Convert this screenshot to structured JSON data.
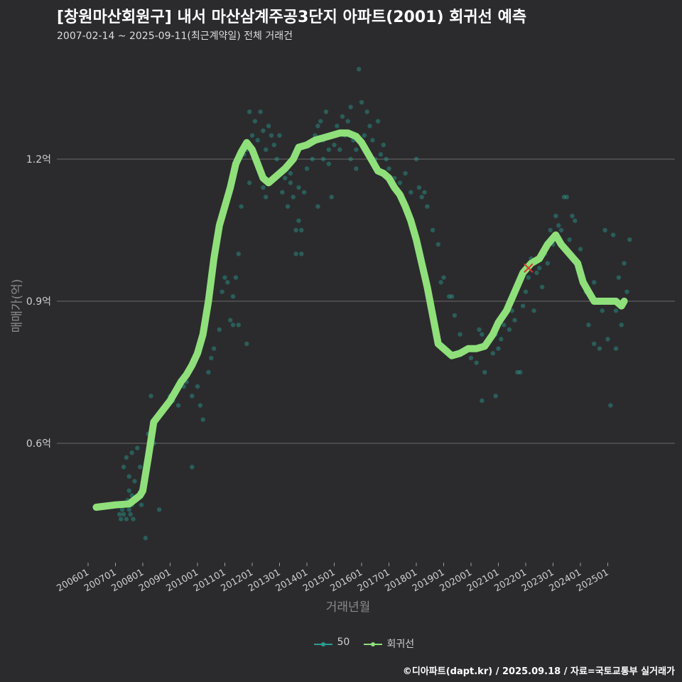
{
  "header": {
    "title": "[창원마산회원구] 내서 마산삼계주공3단지 아파트(2001) 회귀선 예측",
    "subtitle": "2007-02-14 ~ 2025-09-11(최근계약일) 전체 거래건"
  },
  "footer": {
    "credit": "©디아파트(dapt.kr) / 2025.09.18 / 자료=국토교통부 실거래가"
  },
  "colors": {
    "background": "#2b2b2e",
    "scatter": "#2a9d8f",
    "regression": "#8fe07a",
    "highlight": "#e03030",
    "grid": "#6a6a6a"
  },
  "chart_data": {
    "type": "scatter",
    "xlabel": "거래년월",
    "ylabel": "매매가(억)",
    "ylim": [
      0.35,
      1.45
    ],
    "yticks": [
      0.6,
      0.9,
      1.2
    ],
    "ytick_labels": [
      "0.6억",
      "0.9억",
      "1.2억"
    ],
    "xlim": [
      "2006-01-01",
      "2025-12-31"
    ],
    "xtick_labels": [
      "200601",
      "200701",
      "200801",
      "200901",
      "201001",
      "201101",
      "201201",
      "201301",
      "201401",
      "201501",
      "201601",
      "201701",
      "201801",
      "201901",
      "202001",
      "202101",
      "202201",
      "202301",
      "202401",
      "202501"
    ],
    "grid": true,
    "legend": {
      "position": "bottom",
      "entries": [
        "50",
        "회귀선"
      ]
    },
    "series": [
      {
        "name": "50",
        "type": "scatter",
        "points": [
          [
            2007.15,
            0.45
          ],
          [
            2007.2,
            0.44
          ],
          [
            2007.25,
            0.46
          ],
          [
            2007.3,
            0.45
          ],
          [
            2007.35,
            0.47
          ],
          [
            2007.4,
            0.44
          ],
          [
            2007.45,
            0.48
          ],
          [
            2007.5,
            0.46
          ],
          [
            2007.55,
            0.45
          ],
          [
            2007.6,
            0.47
          ],
          [
            2007.65,
            0.44
          ],
          [
            2007.3,
            0.55
          ],
          [
            2007.4,
            0.57
          ],
          [
            2007.5,
            0.53
          ],
          [
            2007.6,
            0.58
          ],
          [
            2007.7,
            0.52
          ],
          [
            2007.8,
            0.59
          ],
          [
            2007.9,
            0.55
          ],
          [
            2007.5,
            0.5
          ],
          [
            2007.6,
            0.49
          ],
          [
            2008.1,
            0.4
          ],
          [
            2007.95,
            0.47
          ],
          [
            2008.2,
            0.62
          ],
          [
            2008.3,
            0.7
          ],
          [
            2008.4,
            0.6
          ],
          [
            2008.6,
            0.66
          ],
          [
            2008.7,
            0.67
          ],
          [
            2008.6,
            0.46
          ],
          [
            2008.9,
            0.68
          ],
          [
            2009.0,
            0.7
          ],
          [
            2009.1,
            0.69
          ],
          [
            2009.2,
            0.71
          ],
          [
            2009.3,
            0.68
          ],
          [
            2009.5,
            0.72
          ],
          [
            2009.6,
            0.73
          ],
          [
            2009.8,
            0.55
          ],
          [
            2009.8,
            0.7
          ],
          [
            2010.0,
            0.72
          ],
          [
            2010.1,
            0.68
          ],
          [
            2010.2,
            0.65
          ],
          [
            2010.4,
            0.75
          ],
          [
            2010.5,
            0.78
          ],
          [
            2010.6,
            0.8
          ],
          [
            2010.8,
            0.84
          ],
          [
            2010.9,
            0.92
          ],
          [
            2011.0,
            0.95
          ],
          [
            2011.1,
            0.94
          ],
          [
            2011.2,
            0.86
          ],
          [
            2011.3,
            0.91
          ],
          [
            2011.4,
            0.95
          ],
          [
            2011.5,
            1.0
          ],
          [
            2011.6,
            1.1
          ],
          [
            2011.7,
            1.21
          ],
          [
            2011.8,
            0.81
          ],
          [
            2011.9,
            1.15
          ],
          [
            2011.5,
            0.85
          ],
          [
            2011.3,
            0.85
          ],
          [
            2011.8,
            1.22
          ],
          [
            2011.9,
            1.3
          ],
          [
            2012.0,
            1.25
          ],
          [
            2012.1,
            1.28
          ],
          [
            2012.2,
            1.24
          ],
          [
            2012.3,
            1.3
          ],
          [
            2012.4,
            1.26
          ],
          [
            2012.5,
            1.22
          ],
          [
            2012.6,
            1.27
          ],
          [
            2012.7,
            1.25
          ],
          [
            2012.8,
            1.23
          ],
          [
            2012.9,
            1.2
          ],
          [
            2012.4,
            1.14
          ],
          [
            2012.5,
            1.12
          ],
          [
            2013.0,
            1.25
          ],
          [
            2013.1,
            1.13
          ],
          [
            2013.2,
            1.16
          ],
          [
            2013.3,
            1.1
          ],
          [
            2013.4,
            1.15
          ],
          [
            2013.5,
            1.12
          ],
          [
            2013.6,
            1.05
          ],
          [
            2013.7,
            1.07
          ],
          [
            2013.8,
            1.0
          ],
          [
            2013.9,
            1.13
          ],
          [
            2013.6,
            1.0
          ],
          [
            2013.8,
            1.05
          ],
          [
            2013.4,
            1.17
          ],
          [
            2013.7,
            1.14
          ],
          [
            2014.0,
            1.18
          ],
          [
            2014.2,
            1.2
          ],
          [
            2014.4,
            1.1
          ],
          [
            2014.6,
            1.24
          ],
          [
            2014.8,
            1.22
          ],
          [
            2014.9,
            1.12
          ],
          [
            2014.3,
            1.25
          ],
          [
            2014.5,
            1.28
          ],
          [
            2014.7,
            1.3
          ],
          [
            2014.9,
            1.25
          ],
          [
            2014.4,
            1.27
          ],
          [
            2014.6,
            1.2
          ],
          [
            2014.8,
            1.19
          ],
          [
            2015.0,
            1.23
          ],
          [
            2015.1,
            1.27
          ],
          [
            2015.2,
            1.22
          ],
          [
            2015.3,
            1.29
          ],
          [
            2015.4,
            1.25
          ],
          [
            2015.5,
            1.28
          ],
          [
            2015.6,
            1.31
          ],
          [
            2015.7,
            1.24
          ],
          [
            2015.8,
            1.18
          ],
          [
            2015.9,
            1.39
          ],
          [
            2016.0,
            1.32
          ],
          [
            2016.1,
            1.25
          ],
          [
            2016.2,
            1.3
          ],
          [
            2016.3,
            1.27
          ],
          [
            2016.4,
            1.24
          ],
          [
            2016.5,
            1.2
          ],
          [
            2016.6,
            1.28
          ],
          [
            2015.6,
            1.2
          ],
          [
            2015.8,
            1.22
          ],
          [
            2016.7,
            1.21
          ],
          [
            2016.8,
            1.23
          ],
          [
            2016.9,
            1.2
          ],
          [
            2017.0,
            1.18
          ],
          [
            2017.2,
            1.16
          ],
          [
            2017.4,
            1.15
          ],
          [
            2017.6,
            1.17
          ],
          [
            2017.8,
            1.13
          ],
          [
            2018.0,
            1.2
          ],
          [
            2018.1,
            1.14
          ],
          [
            2018.2,
            1.12
          ],
          [
            2018.4,
            1.1
          ],
          [
            2018.6,
            1.05
          ],
          [
            2018.8,
            1.02
          ],
          [
            2018.3,
            1.13
          ],
          [
            2019.0,
            0.95
          ],
          [
            2019.2,
            0.91
          ],
          [
            2019.4,
            0.87
          ],
          [
            2019.6,
            0.83
          ],
          [
            2019.8,
            0.8
          ],
          [
            2020.0,
            0.78
          ],
          [
            2020.2,
            0.77
          ],
          [
            2020.3,
            0.84
          ],
          [
            2020.4,
            0.83
          ],
          [
            2020.5,
            0.75
          ],
          [
            2020.7,
            0.82
          ],
          [
            2020.8,
            0.79
          ],
          [
            2020.9,
            0.83
          ],
          [
            2021.0,
            0.8
          ],
          [
            2021.1,
            0.82
          ],
          [
            2021.2,
            0.85
          ],
          [
            2021.4,
            0.84
          ],
          [
            2021.5,
            0.88
          ],
          [
            2021.6,
            0.86
          ],
          [
            2021.8,
            0.75
          ],
          [
            2021.9,
            0.89
          ],
          [
            2022.0,
            0.92
          ],
          [
            2022.1,
            0.95
          ],
          [
            2022.2,
            0.99
          ],
          [
            2022.3,
            0.88
          ],
          [
            2022.4,
            0.96
          ],
          [
            2022.5,
            0.97
          ],
          [
            2022.6,
            0.93
          ],
          [
            2022.7,
            1.0
          ],
          [
            2022.8,
            0.98
          ],
          [
            2022.9,
            1.05
          ],
          [
            2023.0,
            1.02
          ],
          [
            2023.1,
            1.08
          ],
          [
            2023.2,
            1.06
          ],
          [
            2023.3,
            1.05
          ],
          [
            2023.4,
            1.12
          ],
          [
            2023.5,
            1.12
          ],
          [
            2023.6,
            1.03
          ],
          [
            2023.7,
            1.08
          ],
          [
            2023.8,
            1.07
          ],
          [
            2023.9,
            0.98
          ],
          [
            2024.0,
            1.01
          ],
          [
            2024.1,
            0.95
          ],
          [
            2024.2,
            0.92
          ],
          [
            2024.3,
            0.85
          ],
          [
            2024.4,
            0.91
          ],
          [
            2024.5,
            0.94
          ],
          [
            2024.6,
            0.9
          ],
          [
            2024.8,
            0.88
          ],
          [
            2024.9,
            1.05
          ],
          [
            2025.0,
            0.82
          ],
          [
            2025.1,
            0.68
          ],
          [
            2025.2,
            1.04
          ],
          [
            2025.3,
            0.88
          ],
          [
            2025.4,
            0.95
          ],
          [
            2025.5,
            0.85
          ],
          [
            2025.6,
            0.98
          ],
          [
            2025.7,
            0.92
          ],
          [
            2025.8,
            1.03
          ],
          [
            2024.5,
            0.81
          ],
          [
            2024.7,
            0.8
          ],
          [
            2025.3,
            0.8
          ],
          [
            2020.4,
            0.69
          ],
          [
            2020.9,
            0.7
          ],
          [
            2021.7,
            0.75
          ],
          [
            2019.3,
            0.91
          ],
          [
            2018.9,
            0.94
          ]
        ]
      },
      {
        "name": "회귀선",
        "type": "line",
        "points": [
          [
            2006.3,
            0.465
          ],
          [
            2007.0,
            0.47
          ],
          [
            2007.5,
            0.472
          ],
          [
            2007.9,
            0.49
          ],
          [
            2008.0,
            0.5
          ],
          [
            2008.2,
            0.57
          ],
          [
            2008.4,
            0.645
          ],
          [
            2008.6,
            0.66
          ],
          [
            2008.8,
            0.675
          ],
          [
            2009.0,
            0.69
          ],
          [
            2009.2,
            0.71
          ],
          [
            2009.4,
            0.73
          ],
          [
            2009.6,
            0.745
          ],
          [
            2009.8,
            0.765
          ],
          [
            2010.0,
            0.79
          ],
          [
            2010.2,
            0.83
          ],
          [
            2010.4,
            0.9
          ],
          [
            2010.6,
            0.99
          ],
          [
            2010.8,
            1.06
          ],
          [
            2011.0,
            1.1
          ],
          [
            2011.2,
            1.14
          ],
          [
            2011.4,
            1.19
          ],
          [
            2011.6,
            1.215
          ],
          [
            2011.8,
            1.235
          ],
          [
            2012.0,
            1.22
          ],
          [
            2012.2,
            1.19
          ],
          [
            2012.4,
            1.16
          ],
          [
            2012.6,
            1.15
          ],
          [
            2012.8,
            1.16
          ],
          [
            2013.0,
            1.17
          ],
          [
            2013.2,
            1.18
          ],
          [
            2013.5,
            1.2
          ],
          [
            2013.7,
            1.225
          ],
          [
            2014.0,
            1.23
          ],
          [
            2014.3,
            1.24
          ],
          [
            2014.6,
            1.245
          ],
          [
            2014.9,
            1.25
          ],
          [
            2015.2,
            1.255
          ],
          [
            2015.5,
            1.255
          ],
          [
            2015.8,
            1.248
          ],
          [
            2016.0,
            1.235
          ],
          [
            2016.2,
            1.215
          ],
          [
            2016.4,
            1.195
          ],
          [
            2016.6,
            1.175
          ],
          [
            2016.8,
            1.17
          ],
          [
            2017.0,
            1.16
          ],
          [
            2017.2,
            1.14
          ],
          [
            2017.4,
            1.125
          ],
          [
            2017.6,
            1.1
          ],
          [
            2017.8,
            1.07
          ],
          [
            2018.0,
            1.03
          ],
          [
            2018.2,
            0.98
          ],
          [
            2018.4,
            0.93
          ],
          [
            2018.6,
            0.87
          ],
          [
            2018.8,
            0.81
          ],
          [
            2019.0,
            0.8
          ],
          [
            2019.3,
            0.785
          ],
          [
            2019.6,
            0.79
          ],
          [
            2019.9,
            0.8
          ],
          [
            2020.2,
            0.8
          ],
          [
            2020.5,
            0.805
          ],
          [
            2020.8,
            0.83
          ],
          [
            2021.0,
            0.855
          ],
          [
            2021.3,
            0.88
          ],
          [
            2021.6,
            0.92
          ],
          [
            2021.9,
            0.96
          ],
          [
            2022.2,
            0.98
          ],
          [
            2022.5,
            0.99
          ],
          [
            2022.8,
            1.02
          ],
          [
            2023.1,
            1.04
          ],
          [
            2023.3,
            1.02
          ],
          [
            2023.6,
            1.0
          ],
          [
            2023.9,
            0.98
          ],
          [
            2024.1,
            0.94
          ],
          [
            2024.3,
            0.92
          ],
          [
            2024.5,
            0.9
          ],
          [
            2024.7,
            0.9
          ],
          [
            2025.0,
            0.9
          ],
          [
            2025.3,
            0.9
          ],
          [
            2025.5,
            0.89
          ],
          [
            2025.6,
            0.9
          ]
        ]
      }
    ]
  }
}
